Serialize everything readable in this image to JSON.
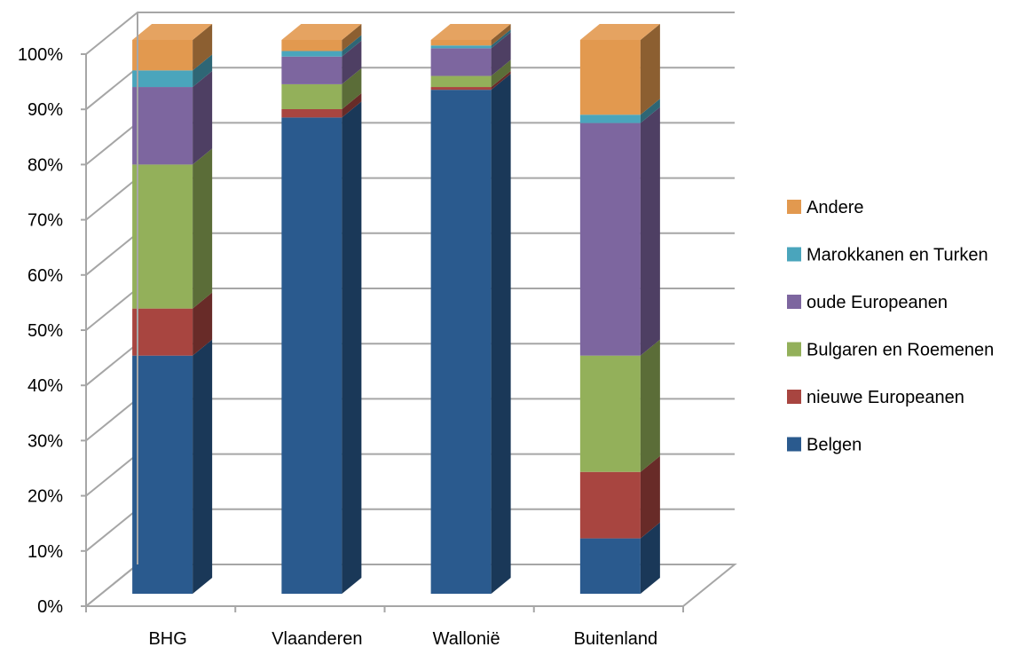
{
  "chart_data": {
    "type": "bar",
    "stacked": true,
    "three_d": true,
    "categories": [
      "BHG",
      "Vlaanderen",
      "Wallonië",
      "Buitenland"
    ],
    "y_tick_labels": [
      "0%",
      "10%",
      "20%",
      "30%",
      "40%",
      "50%",
      "60%",
      "70%",
      "80%",
      "90%",
      "100%"
    ],
    "ylim": [
      0,
      100
    ],
    "grid": true,
    "legend_position": "right",
    "series": [
      {
        "name": "Belgen",
        "color": "#2A5A8E",
        "values": [
          43,
          86,
          91,
          10
        ]
      },
      {
        "name": "nieuwe Europeanen",
        "color": "#A84540",
        "values": [
          8.5,
          1.5,
          0.5,
          12
        ]
      },
      {
        "name": "Bulgaren en Roemenen",
        "color": "#93B05A",
        "values": [
          26,
          4.5,
          2,
          21
        ]
      },
      {
        "name": "oude Europeanen",
        "color": "#7D669F",
        "values": [
          14,
          5,
          5,
          42
        ]
      },
      {
        "name": "Marokkanen en Turken",
        "color": "#4AA5BC",
        "values": [
          3,
          1,
          0.5,
          1.5
        ]
      },
      {
        "name": "Andere",
        "color": "#E2994F",
        "values": [
          5.5,
          2,
          1,
          13.5
        ]
      }
    ]
  }
}
